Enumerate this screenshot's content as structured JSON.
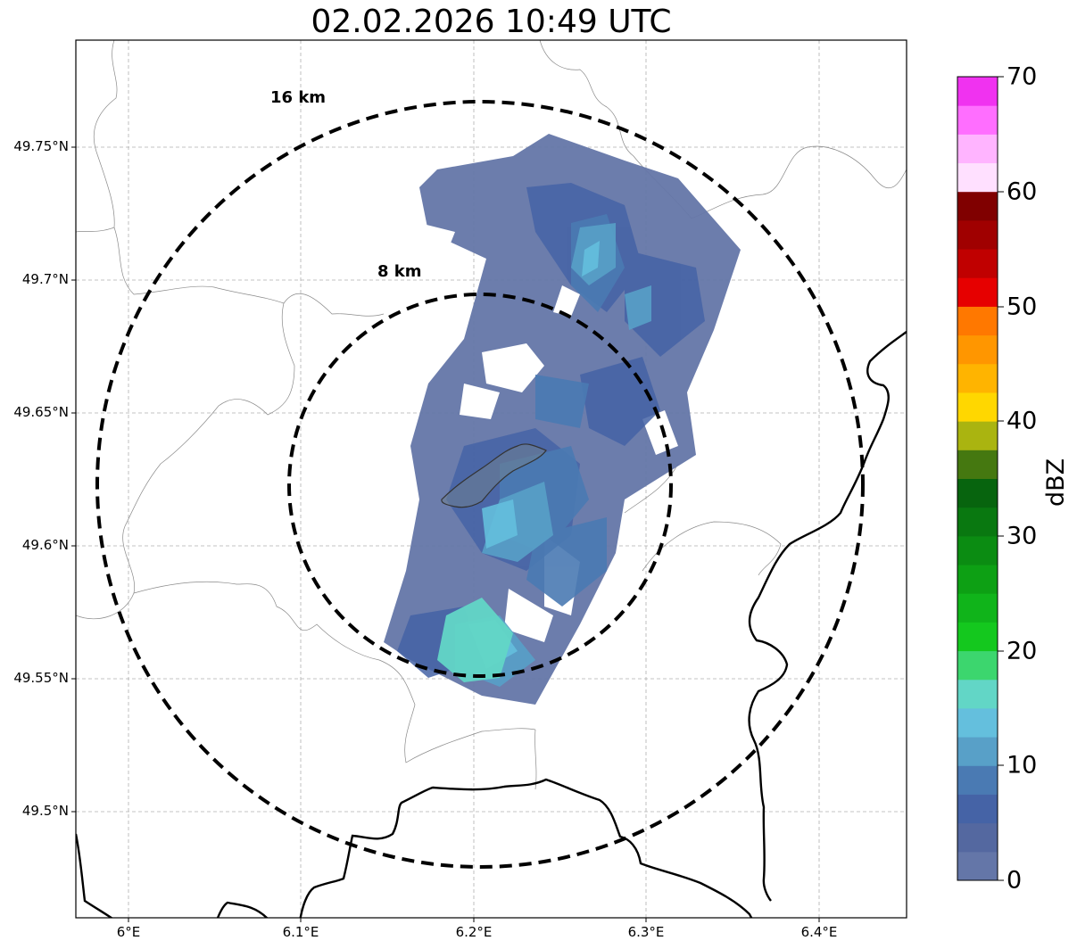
{
  "title": "02.02.2026 10:49 UTC",
  "map": {
    "lon_range": [
      5.97,
      6.45
    ],
    "lat_range": [
      49.46,
      49.79
    ],
    "lat_ticks": [
      {
        "value": 49.75,
        "label": "49.75°N"
      },
      {
        "value": 49.7,
        "label": "49.7°N"
      },
      {
        "value": 49.65,
        "label": "49.65°N"
      },
      {
        "value": 49.6,
        "label": "49.6°N"
      },
      {
        "value": 49.55,
        "label": "49.55°N"
      },
      {
        "value": 49.5,
        "label": "49.5°N"
      }
    ],
    "lon_ticks": [
      {
        "value": 6.0,
        "label": "6°E"
      },
      {
        "value": 6.1,
        "label": "6.1°E"
      },
      {
        "value": 6.2,
        "label": "6.2°E"
      },
      {
        "value": 6.3,
        "label": "6.3°E"
      },
      {
        "value": 6.4,
        "label": "6.4°E"
      }
    ],
    "rings": [
      {
        "label": "8 km"
      },
      {
        "label": "16 km"
      }
    ]
  },
  "colorbar": {
    "title": "dBZ",
    "min": 0,
    "max": 70,
    "ticks": [
      {
        "value": 0,
        "label": "0"
      },
      {
        "value": 10,
        "label": "10"
      },
      {
        "value": 20,
        "label": "20"
      },
      {
        "value": 30,
        "label": "30"
      },
      {
        "value": 40,
        "label": "40"
      },
      {
        "value": 50,
        "label": "50"
      },
      {
        "value": 60,
        "label": "60"
      },
      {
        "value": 70,
        "label": "70"
      }
    ],
    "colors": [
      "#6476a8",
      "#5468a0",
      "#4563a6",
      "#4a7ab3",
      "#58a0c8",
      "#64bfdd",
      "#62d6c6",
      "#3cd66e",
      "#14c81e",
      "#10b41a",
      "#0da014",
      "#0b8c12",
      "#097810",
      "#07640e",
      "#457810",
      "#aab410",
      "#ffd700",
      "#ffb400",
      "#ff9600",
      "#ff7800",
      "#e60000",
      "#c00000",
      "#a00000",
      "#800000",
      "#ffe0ff",
      "#ffb4ff",
      "#ff6eff",
      "#f032f0"
    ]
  }
}
